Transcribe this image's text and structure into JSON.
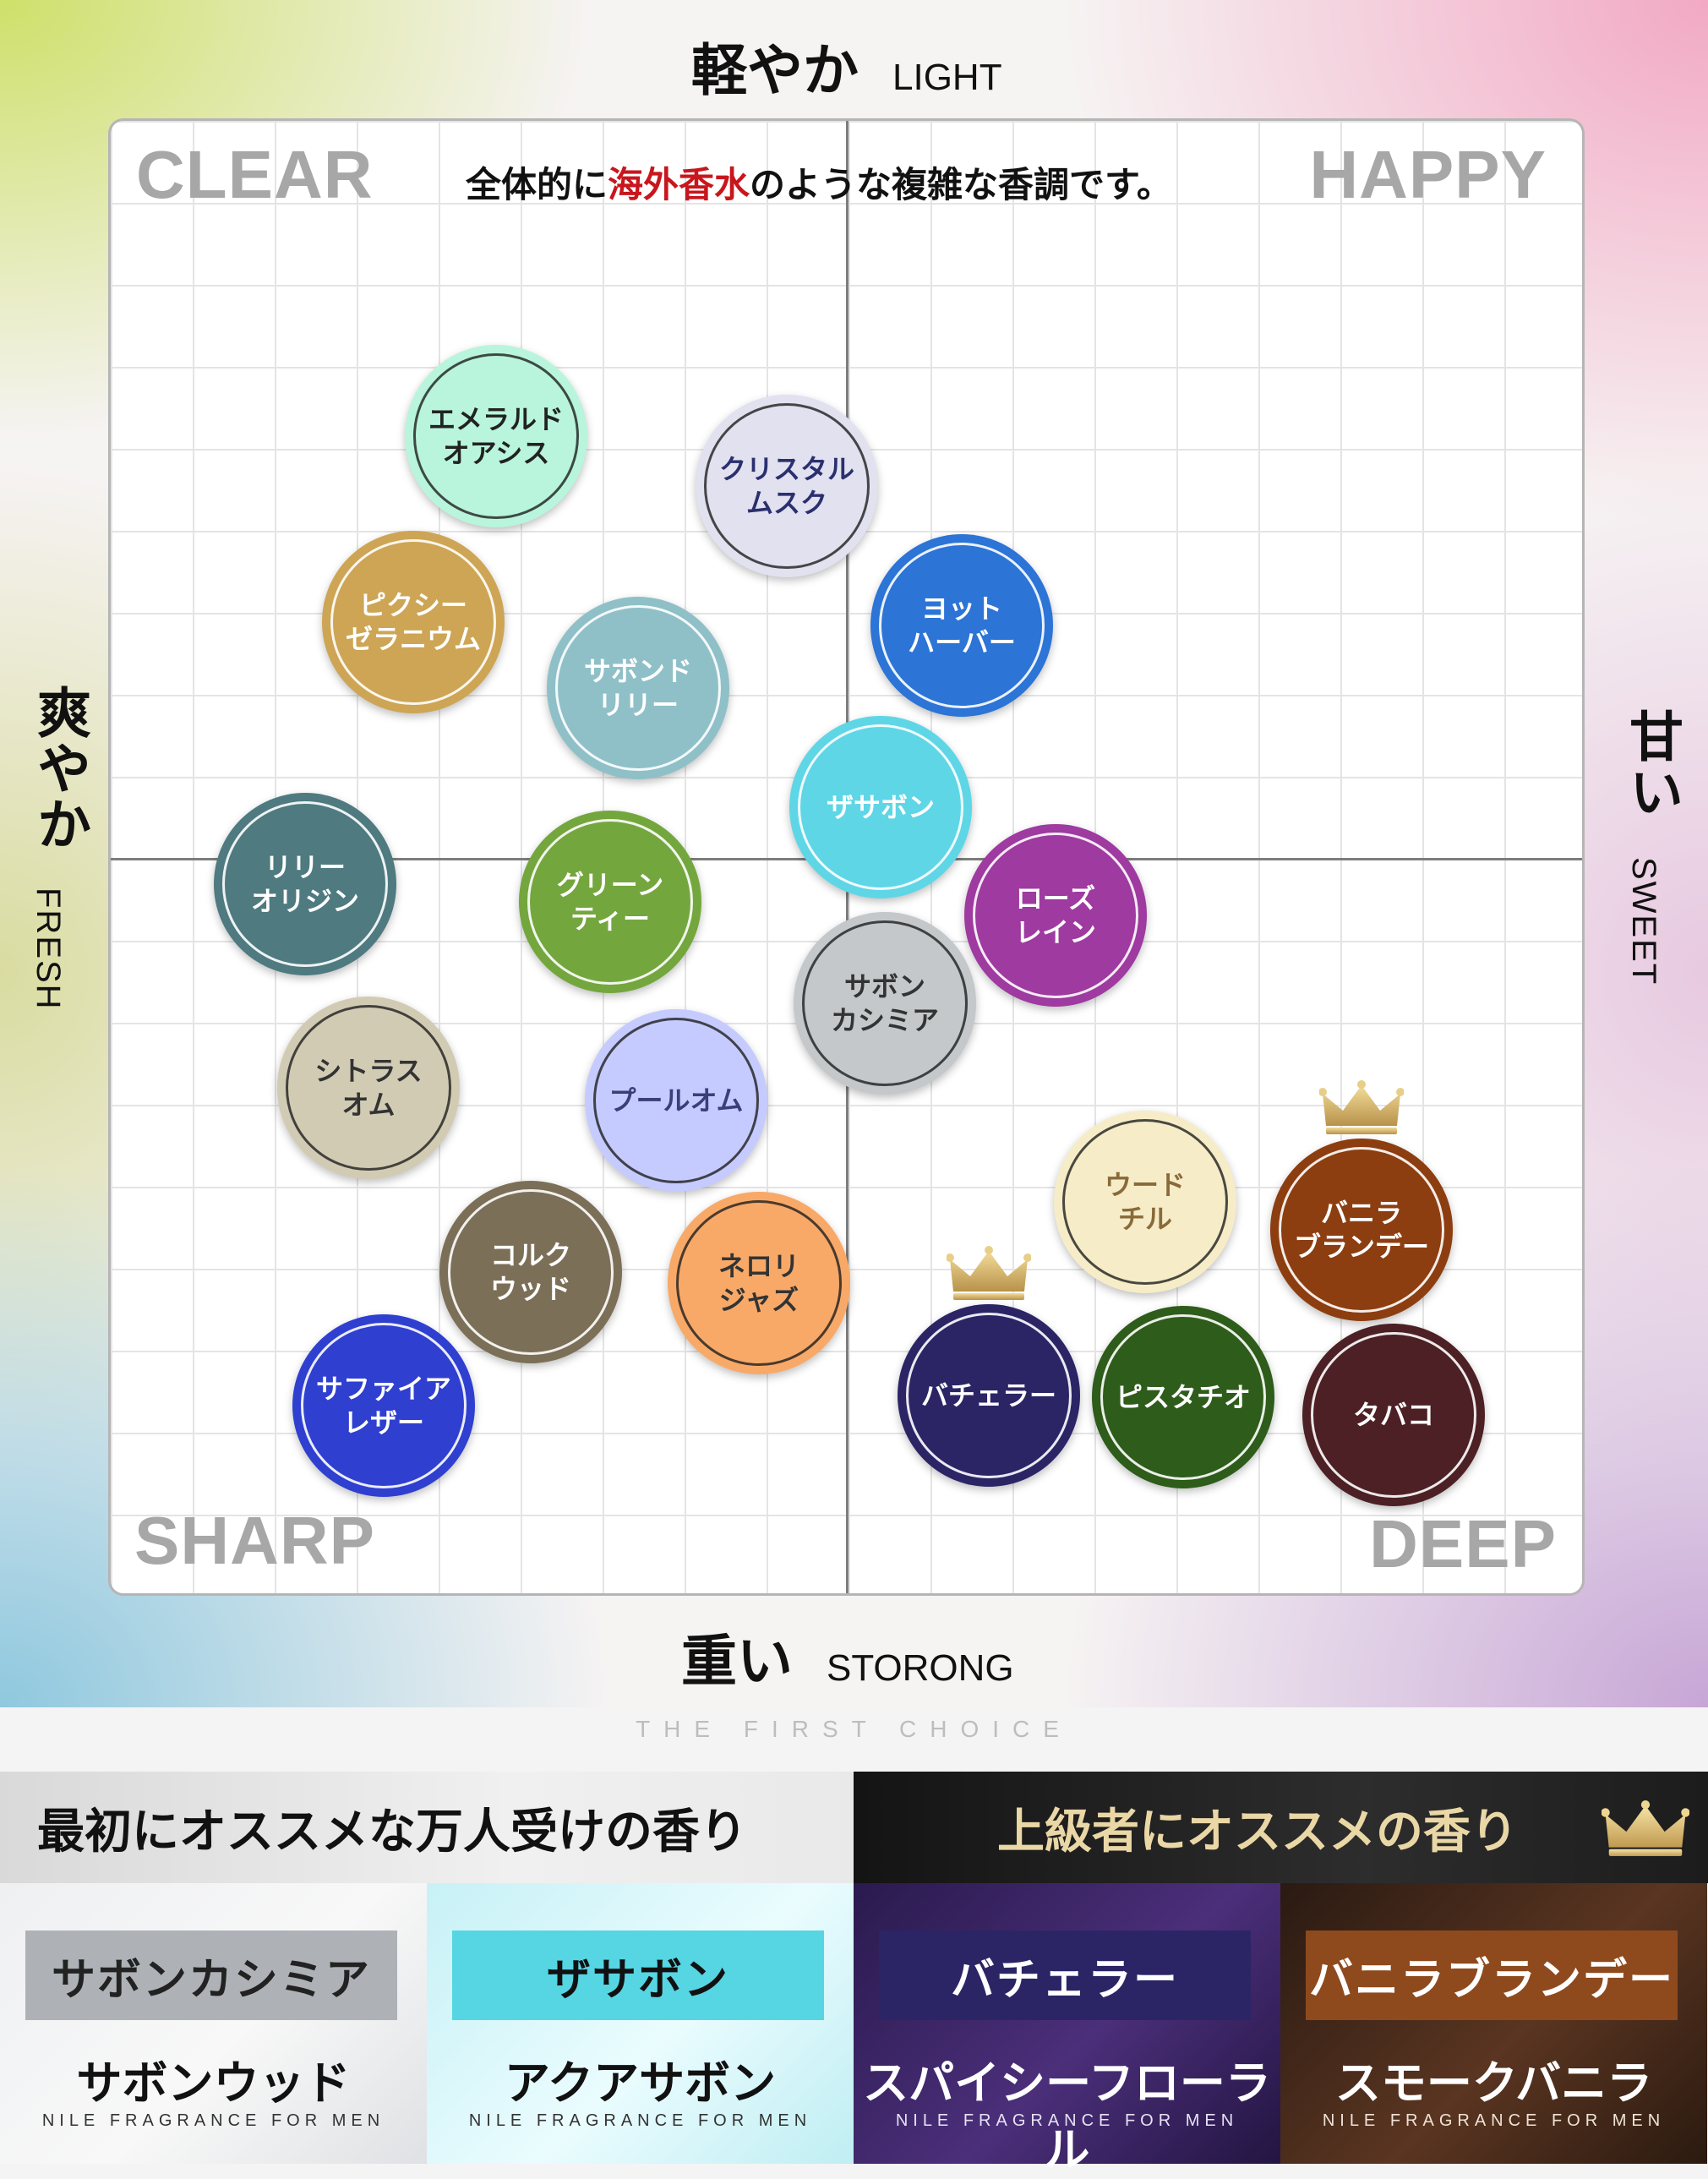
{
  "axes": {
    "top": {
      "jp": "軽やか",
      "en": "LIGHT"
    },
    "bottom": {
      "jp": "重い",
      "en": "STORONG"
    },
    "left": {
      "jp": "爽やか",
      "en": "FRESH"
    },
    "right": {
      "jp": "甘い",
      "en": "SWEET"
    }
  },
  "quadrants": {
    "top_left": "CLEAR",
    "top_right": "HAPPY",
    "bottom_left": "SHARP",
    "bottom_right": "DEEP"
  },
  "headline": {
    "before": "全体的に",
    "highlight": "海外香水",
    "after": "のような複雑な香調です。",
    "highlight_color": "#c8161d"
  },
  "fragrances": [
    {
      "label": "エメラルド\nオアシス",
      "color": "#b8f5dc",
      "text_color": "#222222"
    },
    {
      "label": "クリスタル\nムスク",
      "color": "#e1e1ef",
      "text_color": "#2a2f6e"
    },
    {
      "label": "ピクシー\nゼラニウム",
      "color": "#cda554",
      "text_color": "#ffffff"
    },
    {
      "label": "サボンド\nリリー",
      "color": "#8fc0c8",
      "text_color": "#ffffff"
    },
    {
      "label": "ヨット\nハーバー",
      "color": "#2c74d6",
      "text_color": "#ffffff"
    },
    {
      "label": "ザサボン",
      "color": "#5fd6e6",
      "text_color": "#ffffff"
    },
    {
      "label": "リリー\nオリジン",
      "color": "#4e7a80",
      "text_color": "#ffffff"
    },
    {
      "label": "グリーン\nティー",
      "color": "#74a63e",
      "text_color": "#ffffff"
    },
    {
      "label": "ローズ\nレイン",
      "color": "#9e3aa0",
      "text_color": "#ffffff"
    },
    {
      "label": "サボン\nカシミア",
      "color": "#c4c8ca",
      "text_color": "#333333"
    },
    {
      "label": "シトラス\nオム",
      "color": "#d2cbb4",
      "text_color": "#333333"
    },
    {
      "label": "プールオム",
      "color": "#c6cbff",
      "text_color": "#3a3f7a"
    },
    {
      "label": "ウード\nチル",
      "color": "#f6edc8",
      "text_color": "#8a6a3a"
    },
    {
      "label": "バニラ\nブランデー",
      "color": "#8c3e10",
      "text_color": "#ffffff"
    },
    {
      "label": "コルク\nウッド",
      "color": "#7c6f58",
      "text_color": "#ffffff"
    },
    {
      "label": "ネロリ\nジャズ",
      "color": "#f8a968",
      "text_color": "#333333"
    },
    {
      "label": "サファイア\nレザー",
      "color": "#2f3fd0",
      "text_color": "#ffffff"
    },
    {
      "label": "バチェラー",
      "color": "#2b2566",
      "text_color": "#ffffff"
    },
    {
      "label": "ピスタチオ",
      "color": "#2e5c1a",
      "text_color": "#ffffff"
    },
    {
      "label": "タバコ",
      "color": "#4c2024",
      "text_color": "#ffffff"
    }
  ],
  "tagline": "THE FIRST CHOICE",
  "recommend": {
    "beginner": {
      "heading": "最初にオススメな万人受けの香り"
    },
    "advanced": {
      "heading": "上級者にオススメの香り"
    }
  },
  "cards": [
    {
      "tag": "サボンカシミア",
      "product": "サボンウッド",
      "brand": "NILE FRAGRANCE FOR MEN"
    },
    {
      "tag": "ザサボン",
      "product": "アクアサボン",
      "brand": "NILE FRAGRANCE FOR MEN"
    },
    {
      "tag": "バチェラー",
      "product": "スパイシーフローラル",
      "brand": "NILE FRAGRANCE FOR MEN"
    },
    {
      "tag": "バニラブランデー",
      "product": "スモークバニラ",
      "brand": "NILE FRAGRANCE FOR MEN"
    }
  ],
  "icons": {
    "crown": "crown-icon"
  }
}
